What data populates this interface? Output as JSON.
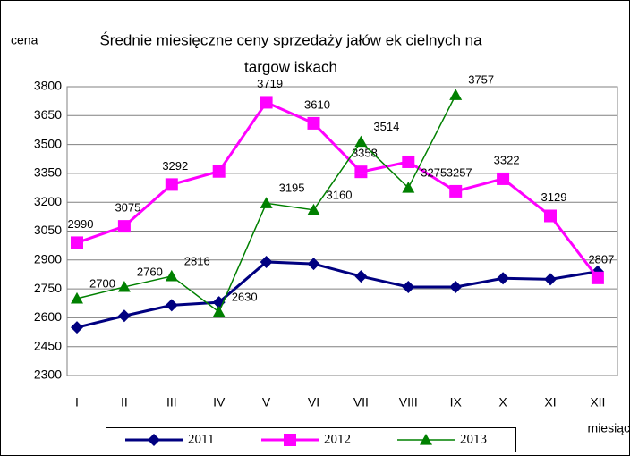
{
  "chart_data": {
    "type": "line",
    "title": [
      "Średnie miesięczne ceny sprzedaży jałów ek cielnych na",
      "targow iskach"
    ],
    "y_label": "cena",
    "x_label": "miesiąc",
    "categories": [
      "I",
      "II",
      "III",
      "IV",
      "V",
      "VI",
      "VII",
      "VIII",
      "IX",
      "X",
      "XI",
      "XII"
    ],
    "series": [
      {
        "name": "2011",
        "color": "#000080",
        "marker": "diamond",
        "values": [
          2550,
          2610,
          2665,
          2680,
          2890,
          2880,
          2815,
          2760,
          2760,
          2805,
          2800,
          2840
        ]
      },
      {
        "name": "2012",
        "color": "#ff00ff",
        "marker": "square",
        "values": [
          2990,
          3075,
          3292,
          3360,
          3719,
          3610,
          3358,
          3410,
          3257,
          3322,
          3129,
          2807
        ],
        "value_labels": [
          "2990",
          "3075",
          "3292",
          null,
          "3719",
          "3610",
          "3358",
          null,
          "3257",
          "3322",
          "3129",
          "2807"
        ]
      },
      {
        "name": "2013",
        "color": "#008000",
        "marker": "triangle",
        "values": [
          2700,
          2760,
          2816,
          2630,
          3195,
          3160,
          3514,
          3275,
          3757,
          null,
          null,
          null
        ],
        "value_labels": [
          "2700",
          "2760",
          "2816",
          "2630",
          "3195",
          "3160",
          "3514",
          "3275",
          "3757",
          null,
          null,
          null
        ]
      }
    ],
    "ylim": [
      2300,
      3800
    ],
    "yticks": [
      2300,
      2450,
      2600,
      2750,
      2900,
      3050,
      3200,
      3350,
      3500,
      3650,
      3800
    ],
    "grid": true,
    "legend": "bottom"
  }
}
